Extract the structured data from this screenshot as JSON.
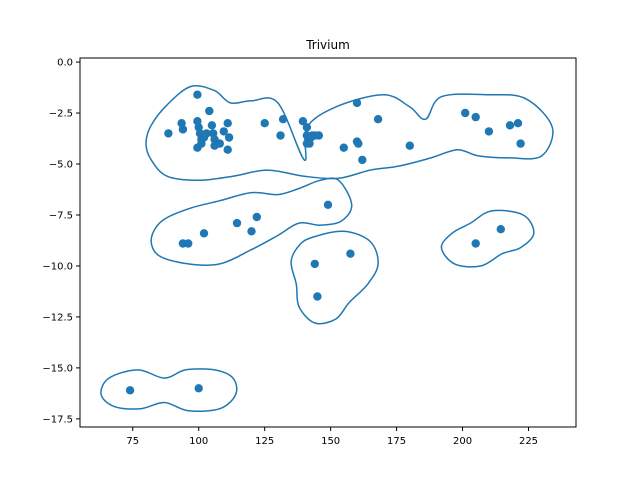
{
  "chart_data": {
    "type": "scatter",
    "title": "Trivium",
    "xlabel": "",
    "ylabel": "",
    "xlim": [
      55,
      243
    ],
    "ylim": [
      -17.9,
      0.2
    ],
    "xticks": [
      75,
      100,
      125,
      150,
      175,
      200,
      225
    ],
    "yticks": [
      0.0,
      -2.5,
      -5.0,
      -7.5,
      -10.0,
      -12.5,
      -15.0,
      -17.5
    ],
    "xtick_labels": [
      "75",
      "100",
      "125",
      "150",
      "175",
      "200",
      "225"
    ],
    "ytick_labels": [
      "0.0",
      "−2.5",
      "−5.0",
      "−7.5",
      "−10.0",
      "−12.5",
      "−15.0",
      "−17.5"
    ],
    "grid": false,
    "point_color": "#1f77b4",
    "contour_color": "#1f77b4",
    "points": [
      [
        99.5,
        -1.6
      ],
      [
        104,
        -2.4
      ],
      [
        88.5,
        -3.5
      ],
      [
        93.5,
        -3.0
      ],
      [
        94,
        -3.3
      ],
      [
        99.5,
        -2.9
      ],
      [
        100,
        -3.2
      ],
      [
        100.5,
        -3.5
      ],
      [
        101,
        -3.8
      ],
      [
        99.5,
        -4.2
      ],
      [
        101,
        -4.0
      ],
      [
        102,
        -3.7
      ],
      [
        103,
        -3.5
      ],
      [
        105,
        -3.1
      ],
      [
        105.5,
        -3.5
      ],
      [
        106,
        -3.8
      ],
      [
        106,
        -4.1
      ],
      [
        108,
        -4.0
      ],
      [
        109.5,
        -3.4
      ],
      [
        111,
        -3.0
      ],
      [
        111.5,
        -3.7
      ],
      [
        111,
        -4.3
      ],
      [
        125,
        -3.0
      ],
      [
        131,
        -3.6
      ],
      [
        132,
        -2.8
      ],
      [
        139.5,
        -2.9
      ],
      [
        141,
        -3.2
      ],
      [
        141,
        -3.6
      ],
      [
        141.5,
        -3.9
      ],
      [
        142.5,
        -3.7
      ],
      [
        143,
        -3.6
      ],
      [
        144,
        -3.6
      ],
      [
        145.5,
        -3.6
      ],
      [
        141,
        -4.0
      ],
      [
        142,
        -4.0
      ],
      [
        155,
        -4.2
      ],
      [
        160,
        -2.0
      ],
      [
        160,
        -3.9
      ],
      [
        160.5,
        -4.0
      ],
      [
        162,
        -4.8
      ],
      [
        168,
        -2.8
      ],
      [
        180,
        -4.1
      ],
      [
        201,
        -2.5
      ],
      [
        205,
        -2.7
      ],
      [
        210,
        -3.4
      ],
      [
        218,
        -3.1
      ],
      [
        221,
        -3.0
      ],
      [
        222,
        -4.0
      ],
      [
        94,
        -8.9
      ],
      [
        96,
        -8.9
      ],
      [
        102,
        -8.4
      ],
      [
        114.5,
        -7.9
      ],
      [
        120,
        -8.3
      ],
      [
        122,
        -7.6
      ],
      [
        149,
        -7.0
      ],
      [
        144,
        -9.9
      ],
      [
        157.5,
        -9.4
      ],
      [
        145,
        -11.5
      ],
      [
        205,
        -8.9
      ],
      [
        214.5,
        -8.2
      ],
      [
        74,
        -16.1
      ],
      [
        100,
        -16.0
      ]
    ],
    "contours": [
      [
        [
          140,
          -4.8
        ],
        [
          141,
          -3.2
        ],
        [
          152,
          -2.2
        ],
        [
          170,
          -1.6
        ],
        [
          180,
          -2.2
        ],
        [
          186,
          -2.8
        ],
        [
          192,
          -1.7
        ],
        [
          210,
          -1.6
        ],
        [
          224,
          -1.8
        ],
        [
          234,
          -3.2
        ],
        [
          230,
          -4.6
        ],
        [
          218,
          -4.7
        ],
        [
          206,
          -4.6
        ],
        [
          198,
          -4.3
        ],
        [
          188,
          -4.7
        ],
        [
          176,
          -5.1
        ],
        [
          165,
          -5.3
        ],
        [
          153,
          -5.7
        ],
        [
          140,
          -5.6
        ],
        [
          126,
          -5.3
        ],
        [
          113,
          -5.6
        ],
        [
          100,
          -5.8
        ],
        [
          88,
          -5.6
        ],
        [
          82,
          -4.8
        ],
        [
          80,
          -4.0
        ],
        [
          82,
          -3.1
        ],
        [
          88,
          -2.1
        ],
        [
          97,
          -1.2
        ],
        [
          106,
          -1.4
        ],
        [
          112,
          -2.0
        ],
        [
          120,
          -1.9
        ],
        [
          130,
          -2.0
        ],
        [
          140,
          -4.8
        ]
      ],
      [
        [
          153,
          -5.8
        ],
        [
          158,
          -7.0
        ],
        [
          154,
          -7.8
        ],
        [
          146,
          -8.0
        ],
        [
          138,
          -7.9
        ],
        [
          130,
          -8.5
        ],
        [
          120,
          -9.2
        ],
        [
          108,
          -9.9
        ],
        [
          96,
          -9.9
        ],
        [
          85,
          -9.5
        ],
        [
          82,
          -8.7
        ],
        [
          86,
          -7.8
        ],
        [
          96,
          -7.2
        ],
        [
          108,
          -6.8
        ],
        [
          120,
          -6.4
        ],
        [
          130,
          -6.5
        ],
        [
          138,
          -6.2
        ],
        [
          146,
          -5.8
        ],
        [
          153,
          -5.8
        ]
      ],
      [
        [
          143,
          -8.6
        ],
        [
          155,
          -8.3
        ],
        [
          165,
          -8.8
        ],
        [
          168,
          -9.9
        ],
        [
          164,
          -10.9
        ],
        [
          157,
          -11.8
        ],
        [
          152,
          -12.6
        ],
        [
          144,
          -12.8
        ],
        [
          138,
          -12.0
        ],
        [
          137,
          -10.9
        ],
        [
          135,
          -9.8
        ],
        [
          138,
          -9.0
        ],
        [
          143,
          -8.6
        ]
      ],
      [
        [
          211,
          -7.3
        ],
        [
          223,
          -7.5
        ],
        [
          227,
          -8.4
        ],
        [
          222,
          -9.1
        ],
        [
          215,
          -9.4
        ],
        [
          207,
          -10.0
        ],
        [
          197,
          -9.9
        ],
        [
          192,
          -9.1
        ],
        [
          196,
          -8.4
        ],
        [
          203,
          -7.9
        ],
        [
          211,
          -7.3
        ]
      ],
      [
        [
          66,
          -15.5
        ],
        [
          77,
          -15.1
        ],
        [
          87,
          -15.5
        ],
        [
          95,
          -15.1
        ],
        [
          106,
          -15.1
        ],
        [
          113,
          -15.5
        ],
        [
          114,
          -16.3
        ],
        [
          108,
          -17.0
        ],
        [
          96,
          -17.1
        ],
        [
          87,
          -16.7
        ],
        [
          78,
          -17.0
        ],
        [
          68,
          -16.9
        ],
        [
          63,
          -16.3
        ],
        [
          66,
          -15.5
        ]
      ]
    ]
  }
}
